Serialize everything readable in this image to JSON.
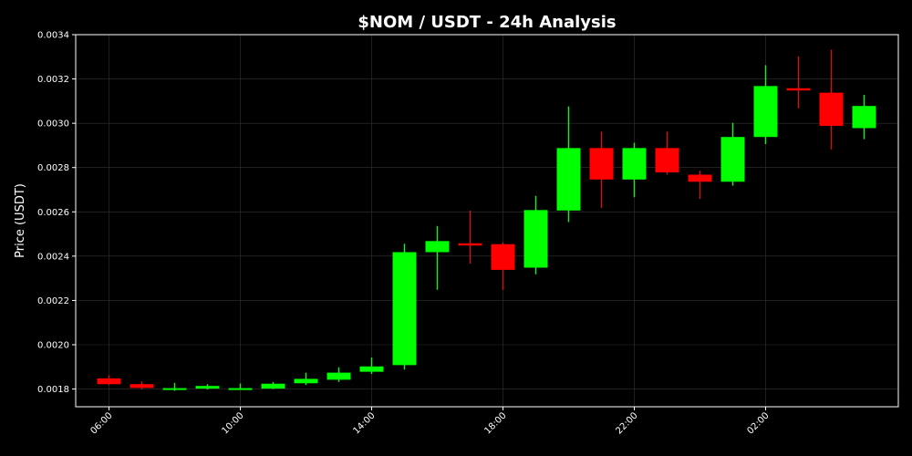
{
  "chart_data": {
    "type": "candlestick",
    "title": "$NOM / USDT - 24h Analysis",
    "xlabel": "",
    "ylabel": "Price (USDT)",
    "ylim": [
      0.00172,
      0.0034
    ],
    "y_ticks": [
      "0.0018",
      "0.0020",
      "0.0022",
      "0.0024",
      "0.0026",
      "0.0028",
      "0.0030",
      "0.0032",
      "0.0034"
    ],
    "y_tick_values": [
      0.0018,
      0.002,
      0.0022,
      0.0024,
      0.0026,
      0.0028,
      0.003,
      0.0032,
      0.0034
    ],
    "x_ticks": [
      "06:00",
      "10:00",
      "14:00",
      "18:00",
      "22:00",
      "02:00"
    ],
    "x_tick_indices": [
      0,
      4,
      8,
      12,
      16,
      20
    ],
    "grid": true,
    "colors": {
      "background": "#000000",
      "up": "#00ff00",
      "down": "#ff0000",
      "grid": "#333333",
      "axes": "#ffffff",
      "text": "#ffffff"
    },
    "candles": [
      {
        "time": "06:00",
        "open": 0.001848,
        "high": 0.001862,
        "low": 0.001818,
        "close": 0.001822
      },
      {
        "time": "07:00",
        "open": 0.001822,
        "high": 0.001835,
        "low": 0.001798,
        "close": 0.001805
      },
      {
        "time": "08:00",
        "open": 0.0018,
        "high": 0.001828,
        "low": 0.001792,
        "close": 0.001804
      },
      {
        "time": "09:00",
        "open": 0.001802,
        "high": 0.001822,
        "low": 0.001798,
        "close": 0.001814
      },
      {
        "time": "10:00",
        "open": 0.0018,
        "high": 0.001825,
        "low": 0.001797,
        "close": 0.001804
      },
      {
        "time": "11:00",
        "open": 0.001802,
        "high": 0.001832,
        "low": 0.0018,
        "close": 0.001824
      },
      {
        "time": "12:00",
        "open": 0.001826,
        "high": 0.001874,
        "low": 0.001818,
        "close": 0.001846
      },
      {
        "time": "13:00",
        "open": 0.001842,
        "high": 0.001898,
        "low": 0.001832,
        "close": 0.001874
      },
      {
        "time": "14:00",
        "open": 0.001878,
        "high": 0.001942,
        "low": 0.001868,
        "close": 0.001902
      },
      {
        "time": "15:00",
        "open": 0.001908,
        "high": 0.002456,
        "low": 0.001888,
        "close": 0.002418
      },
      {
        "time": "16:00",
        "open": 0.002418,
        "high": 0.002536,
        "low": 0.002248,
        "close": 0.002468
      },
      {
        "time": "17:00",
        "open": 0.002458,
        "high": 0.002606,
        "low": 0.002366,
        "close": 0.002448
      },
      {
        "time": "18:00",
        "open": 0.002454,
        "high": 0.002462,
        "low": 0.002248,
        "close": 0.002338
      },
      {
        "time": "19:00",
        "open": 0.002348,
        "high": 0.002672,
        "low": 0.002318,
        "close": 0.002608
      },
      {
        "time": "20:00",
        "open": 0.002606,
        "high": 0.003076,
        "low": 0.002554,
        "close": 0.002888
      },
      {
        "time": "21:00",
        "open": 0.002888,
        "high": 0.002962,
        "low": 0.002618,
        "close": 0.002746
      },
      {
        "time": "22:00",
        "open": 0.002746,
        "high": 0.002912,
        "low": 0.002666,
        "close": 0.002888
      },
      {
        "time": "23:00",
        "open": 0.002888,
        "high": 0.002962,
        "low": 0.002768,
        "close": 0.002778
      },
      {
        "time": "00:00",
        "open": 0.002768,
        "high": 0.002786,
        "low": 0.002658,
        "close": 0.002736
      },
      {
        "time": "01:00",
        "open": 0.002736,
        "high": 0.003002,
        "low": 0.002718,
        "close": 0.002938
      },
      {
        "time": "02:00",
        "open": 0.002938,
        "high": 0.003262,
        "low": 0.002906,
        "close": 0.003168
      },
      {
        "time": "03:00",
        "open": 0.003158,
        "high": 0.003302,
        "low": 0.003068,
        "close": 0.003148
      },
      {
        "time": "04:00",
        "open": 0.003138,
        "high": 0.003332,
        "low": 0.002882,
        "close": 0.002988
      },
      {
        "time": "05:00",
        "open": 0.002978,
        "high": 0.003128,
        "low": 0.002928,
        "close": 0.003078
      }
    ]
  }
}
